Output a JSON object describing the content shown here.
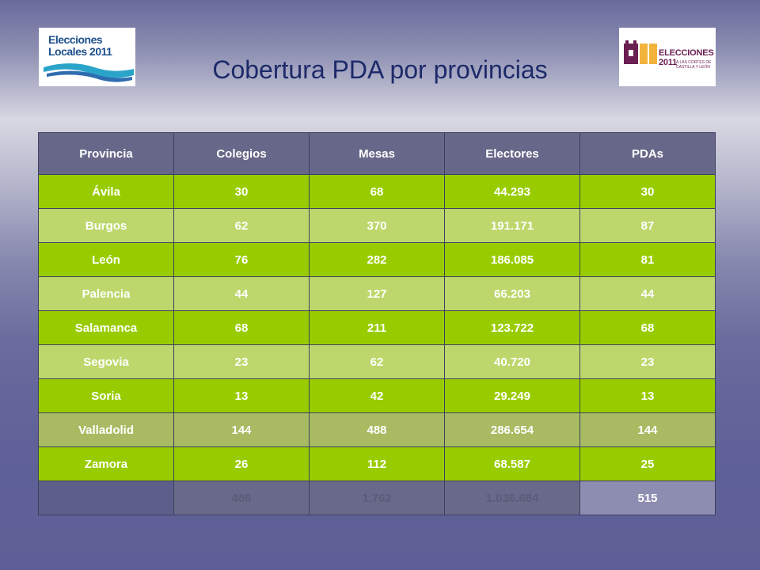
{
  "slide": {
    "title": "Cobertura PDA por provincias",
    "logo_left": {
      "line1": "Elecciones",
      "line2": "Locales 2011"
    },
    "logo_right": {
      "title": "ELECCIONES 2011",
      "subtitle": "A LAS CORTES DE CASTILLA Y LEÓN"
    }
  },
  "table": {
    "headers": [
      "Provincia",
      "Colegios",
      "Mesas",
      "Electores",
      "PDAs"
    ],
    "rows": [
      [
        "Ávila",
        "30",
        "68",
        "44.293",
        "30"
      ],
      [
        "Burgos",
        "62",
        "370",
        "191.171",
        "87"
      ],
      [
        "León",
        "76",
        "282",
        "186.085",
        "81"
      ],
      [
        "Palencia",
        "44",
        "127",
        "66.203",
        "44"
      ],
      [
        "Salamanca",
        "68",
        "211",
        "123.722",
        "68"
      ],
      [
        "Segovia",
        "23",
        "62",
        "40.720",
        "23"
      ],
      [
        "Soria",
        "13",
        "42",
        "29.249",
        "13"
      ],
      [
        "Valladolid",
        "144",
        "488",
        "286.654",
        "144"
      ],
      [
        "Zamora",
        "26",
        "112",
        "68.587",
        "25"
      ]
    ],
    "totals": [
      "",
      "486",
      "1.762",
      "1.036.684",
      "515"
    ]
  },
  "colors": {
    "row_dark": "#99cc00",
    "row_light": "#bdd76c",
    "header": "#676889",
    "title": "#1d2a6a"
  }
}
